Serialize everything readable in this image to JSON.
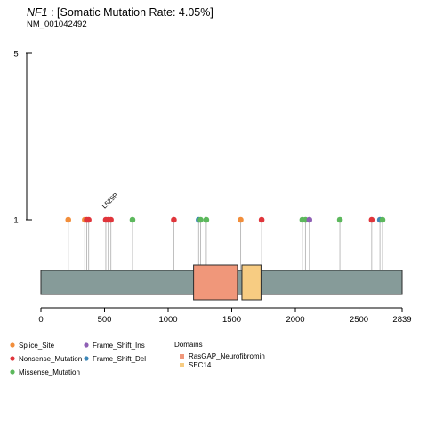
{
  "header": {
    "gene": "NF1",
    "rate_text": " : [Somatic Mutation Rate: 4.05%]",
    "transcript": "NM_001042492"
  },
  "colors": {
    "Splice_Site": "#F28E3B",
    "Nonsense_Mutation": "#E0353B",
    "Missense_Mutation": "#5CB85C",
    "Frame_Shift_Ins": "#8E5FB4",
    "Frame_Shift_Del": "#3D87B8",
    "RasGAP_Neurofibromin": "#F0977A",
    "SEC14": "#F7CC82",
    "protein": "#869B99",
    "stick": "#BDBDBD"
  },
  "chart_data": {
    "type": "lollipop",
    "protein_length": 2839,
    "x_ticks": [
      0,
      500,
      1000,
      1500,
      2000,
      2500,
      2839
    ],
    "x_tick_labels": [
      "0",
      "500",
      "1000",
      "1500",
      "2000",
      "2500",
      "2839"
    ],
    "y_ticks": [
      1,
      5
    ],
    "y_tick_labels": [
      "1",
      "5"
    ],
    "domains": [
      {
        "name": "RasGAP_Neurofibromin",
        "start": 1200,
        "end": 1545
      },
      {
        "name": "SEC14",
        "start": 1580,
        "end": 1730
      }
    ],
    "mutations": [
      {
        "pos": 215,
        "count": 1,
        "type": "Splice_Site"
      },
      {
        "pos": 345,
        "count": 1,
        "type": "Splice_Site"
      },
      {
        "pos": 360,
        "count": 1,
        "type": "Nonsense_Mutation"
      },
      {
        "pos": 375,
        "count": 1,
        "type": "Nonsense_Mutation"
      },
      {
        "pos": 510,
        "count": 1,
        "type": "Nonsense_Mutation"
      },
      {
        "pos": 529,
        "count": 1,
        "type": "Nonsense_Mutation",
        "label": "L529P"
      },
      {
        "pos": 550,
        "count": 1,
        "type": "Nonsense_Mutation"
      },
      {
        "pos": 720,
        "count": 1,
        "type": "Missense_Mutation"
      },
      {
        "pos": 1045,
        "count": 1,
        "type": "Nonsense_Mutation"
      },
      {
        "pos": 1240,
        "count": 1,
        "type": "Frame_Shift_Del"
      },
      {
        "pos": 1255,
        "count": 1,
        "type": "Missense_Mutation"
      },
      {
        "pos": 1300,
        "count": 1,
        "type": "Missense_Mutation"
      },
      {
        "pos": 1570,
        "count": 1,
        "type": "Splice_Site"
      },
      {
        "pos": 1735,
        "count": 1,
        "type": "Nonsense_Mutation"
      },
      {
        "pos": 2055,
        "count": 1,
        "type": "Missense_Mutation"
      },
      {
        "pos": 2080,
        "count": 1,
        "type": "Missense_Mutation"
      },
      {
        "pos": 2110,
        "count": 1,
        "type": "Frame_Shift_Ins"
      },
      {
        "pos": 2350,
        "count": 1,
        "type": "Missense_Mutation"
      },
      {
        "pos": 2600,
        "count": 1,
        "type": "Nonsense_Mutation"
      },
      {
        "pos": 2665,
        "count": 1,
        "type": "Frame_Shift_Del"
      },
      {
        "pos": 2685,
        "count": 1,
        "type": "Missense_Mutation"
      }
    ],
    "legend_mutations": [
      {
        "type": "Splice_Site",
        "label": "Splice_Site"
      },
      {
        "type": "Frame_Shift_Ins",
        "label": "Frame_Shift_Ins"
      },
      {
        "type": "Nonsense_Mutation",
        "label": "Nonsense_Mutation"
      },
      {
        "type": "Frame_Shift_Del",
        "label": "Frame_Shift_Del"
      },
      {
        "type": "Missense_Mutation",
        "label": "Missense_Mutation"
      }
    ],
    "legend_domains_title": "Domains",
    "legend_domains": [
      {
        "name": "RasGAP_Neurofibromin",
        "label": "RasGAP_Neurofibromin"
      },
      {
        "name": "SEC14",
        "label": "SEC14"
      }
    ]
  }
}
